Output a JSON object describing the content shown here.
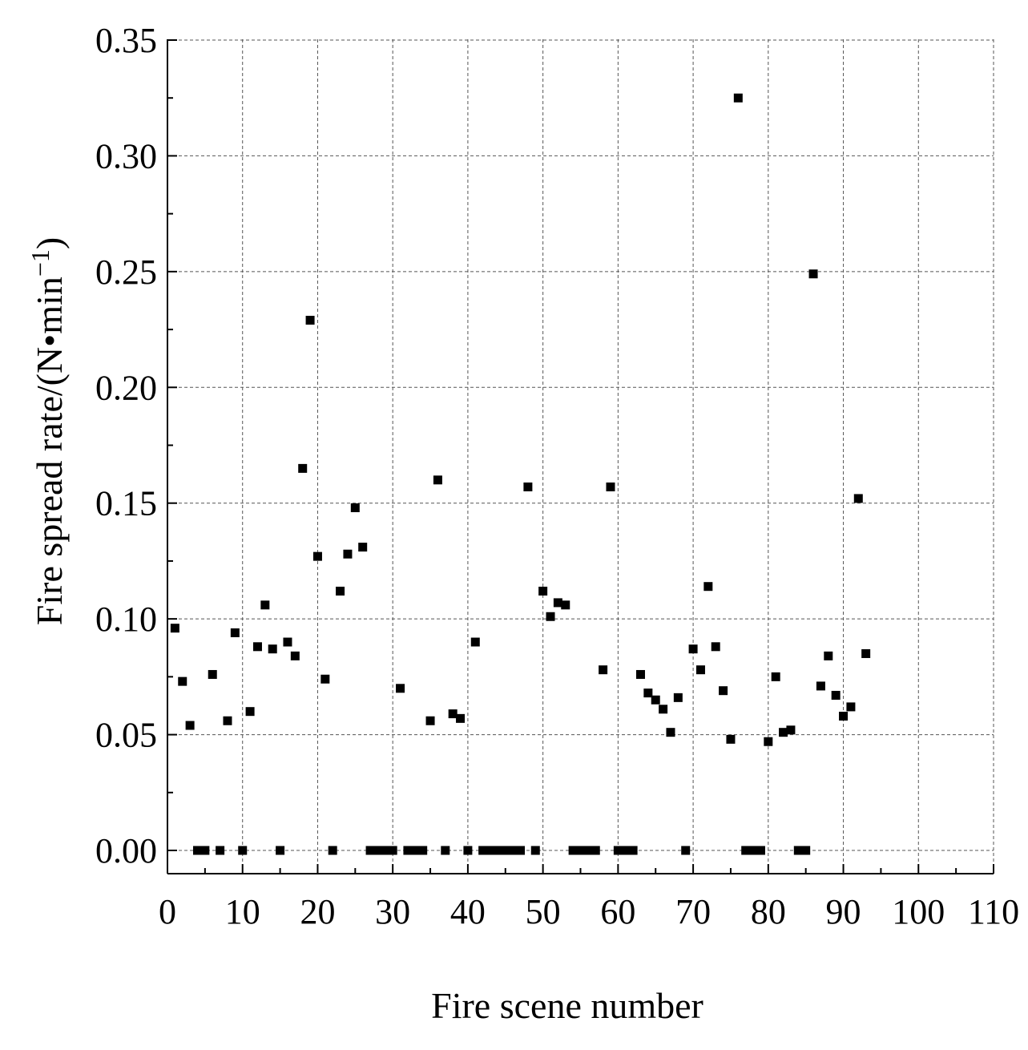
{
  "chart_data": {
    "type": "scatter",
    "title": "",
    "xlabel": "Fire scene number",
    "ylabel_main": "Fire spread rate/(N•min",
    "ylabel_sup": "−1",
    "ylabel_close": ")",
    "xlim": [
      0,
      110
    ],
    "ylim": [
      -0.01,
      0.35
    ],
    "xticks": [
      "0",
      "10",
      "20",
      "30",
      "40",
      "50",
      "60",
      "70",
      "80",
      "90",
      "100",
      "110"
    ],
    "xtick_values": [
      0,
      10,
      20,
      30,
      40,
      50,
      60,
      70,
      80,
      90,
      100,
      110
    ],
    "yticks": [
      "0.00",
      "0.05",
      "0.10",
      "0.15",
      "0.20",
      "0.25",
      "0.30",
      "0.35"
    ],
    "ytick_values": [
      0,
      0.05,
      0.1,
      0.15,
      0.2,
      0.25,
      0.3,
      0.35
    ],
    "grid": true,
    "marker_color": "#000000",
    "series": [
      {
        "x": [
          1,
          2,
          3,
          4,
          5,
          6,
          7,
          8,
          9,
          10,
          11,
          12,
          13,
          14,
          15,
          16,
          17,
          18,
          19,
          20,
          21,
          22,
          23,
          24,
          25,
          26,
          27,
          28,
          29,
          30,
          31,
          32,
          33,
          34,
          35,
          36,
          37,
          38,
          39,
          40,
          41,
          42,
          43,
          44,
          45,
          46,
          47,
          48,
          49,
          50,
          51,
          52,
          53,
          54,
          55,
          56,
          57,
          58,
          59,
          60,
          61,
          62,
          63,
          64,
          65,
          66,
          67,
          68,
          69,
          70,
          71,
          72,
          73,
          74,
          75,
          76,
          77,
          78,
          79,
          80,
          81,
          82,
          83,
          84,
          85,
          86,
          87,
          88,
          89,
          90,
          91,
          92,
          93
        ],
        "y": [
          0.096,
          0.073,
          0.054,
          0,
          0,
          0.076,
          0,
          0.056,
          0.094,
          0,
          0.06,
          0.088,
          0.106,
          0.087,
          0,
          0.09,
          0.084,
          0.165,
          0.229,
          0.127,
          0.074,
          0,
          0.112,
          0.128,
          0.148,
          0.131,
          0,
          0,
          0,
          0,
          0.07,
          0,
          0,
          0,
          0.056,
          0.16,
          0,
          0.059,
          0.057,
          0,
          0.09,
          0,
          0,
          0,
          0,
          0,
          0,
          0.157,
          0,
          0.112,
          0.101,
          0.107,
          0.106,
          0,
          0,
          0,
          0,
          0.078,
          0.157,
          0,
          0,
          0,
          0.076,
          0.068,
          0.065,
          0.061,
          0.051,
          0.066,
          0,
          0.087,
          0.078,
          0.114,
          0.088,
          0.069,
          0.048,
          0.325,
          0,
          0,
          0,
          0.047,
          0.075,
          0.051,
          0.052,
          0,
          0,
          0.249,
          0.071,
          0.084,
          0.067,
          0.058,
          0.062,
          0.152,
          0.085
        ]
      }
    ]
  }
}
